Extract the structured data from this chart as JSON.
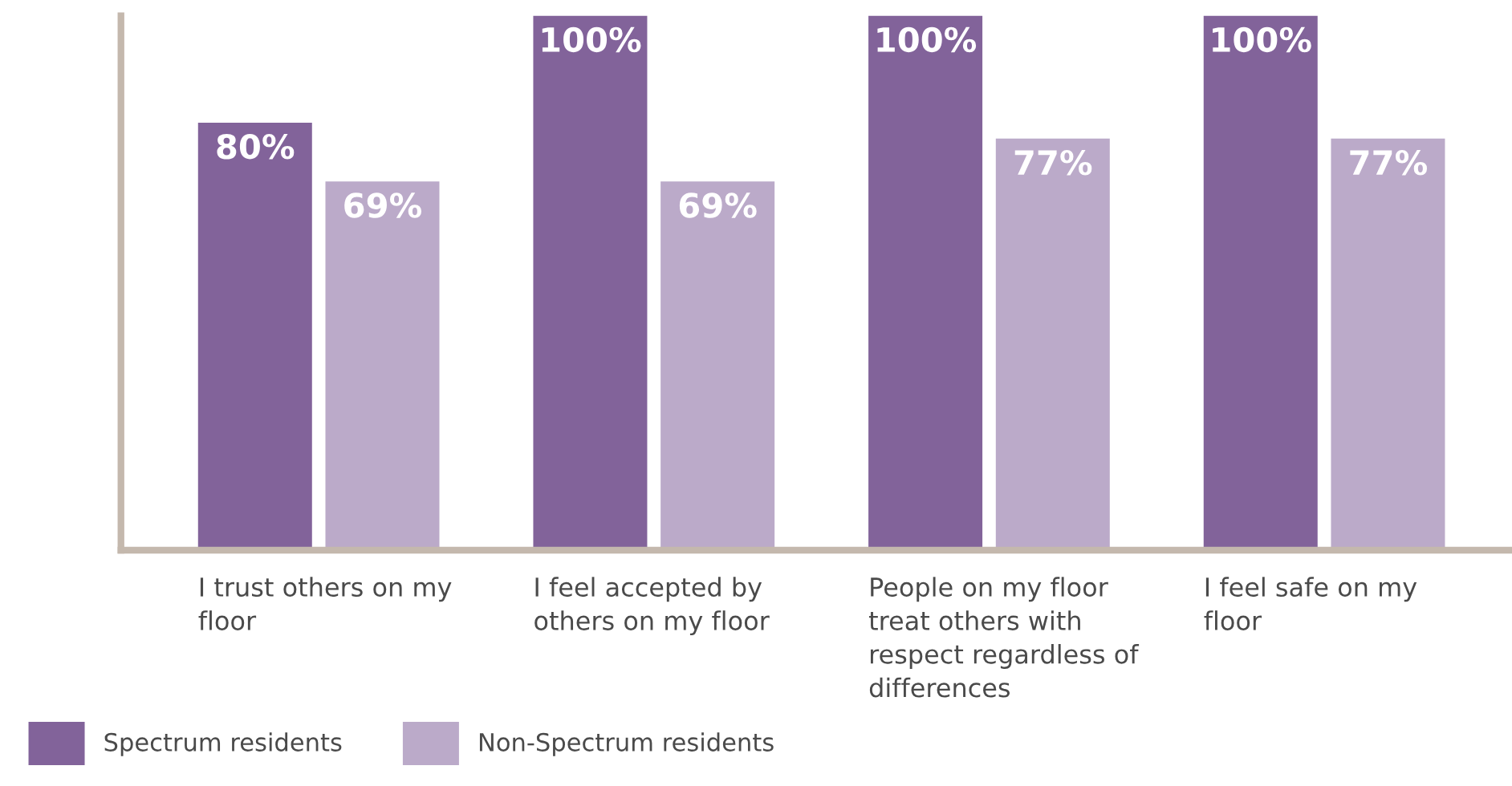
{
  "chart_data": {
    "type": "bar",
    "categories": [
      "I trust others on my floor",
      "I feel accepted by others on my floor",
      "People on my floor treat others with respect regardless of differences",
      "I feel safe on my floor"
    ],
    "series": [
      {
        "name": "Spectrum residents",
        "color": "#82639a",
        "values": [
          80,
          100,
          100,
          100
        ],
        "value_labels": [
          "80%",
          "100%",
          "100%",
          "100%"
        ]
      },
      {
        "name": "Non-Spectrum residents",
        "color": "#bbaac9",
        "values": [
          69,
          69,
          77,
          77
        ],
        "value_labels": [
          "69%",
          "69%",
          "77%",
          "77%"
        ]
      }
    ],
    "ylim": [
      0,
      100
    ],
    "tick_labels": "x",
    "legend": "bottom left"
  }
}
